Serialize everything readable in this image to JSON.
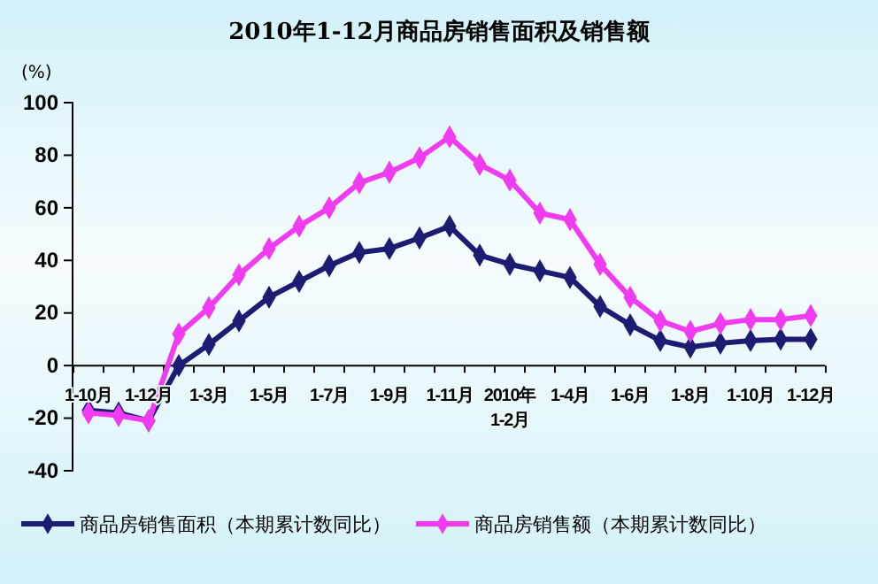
{
  "chart_data": {
    "type": "line",
    "title": "2010年1-12月商品房销售面积及销售额",
    "ylabel": "(%)",
    "categories": [
      "1-10月",
      null,
      "1-12月",
      null,
      "1-3月",
      null,
      "1-5月",
      null,
      "1-7月",
      null,
      "1-9月",
      null,
      "1-11月",
      null,
      "2010年\n1-2月",
      null,
      "1-4月",
      null,
      "1-6月",
      null,
      "1-8月",
      null,
      "1-10月",
      null,
      "1-12月"
    ],
    "series": [
      {
        "name": "商品房销售面积（本期累计数同比）",
        "color": "#1c1c72",
        "values": [
          -17,
          -18,
          -21,
          0,
          8,
          17,
          26,
          32,
          38,
          43,
          44.5,
          48.5,
          53,
          42,
          38.5,
          36,
          33.5,
          22.5,
          15.5,
          9.5,
          7,
          8.5,
          9.5,
          10,
          10
        ]
      },
      {
        "name": "商品房销售额（本期累计数同比）",
        "color": "#f03cf0",
        "values": [
          -18,
          -19,
          -21,
          12,
          22,
          34.5,
          44.5,
          53,
          60,
          69.5,
          73.5,
          79,
          87,
          76.5,
          70.5,
          58,
          55.5,
          38.5,
          26,
          17,
          13,
          16,
          17.5,
          17.5,
          19
        ]
      }
    ],
    "ylim": [
      -40,
      100
    ],
    "yticks": [
      -40,
      -20,
      0,
      20,
      40,
      60,
      80,
      100
    ],
    "grid": false,
    "legend": "bottom",
    "marker": "diamond",
    "line_style": "solid"
  }
}
